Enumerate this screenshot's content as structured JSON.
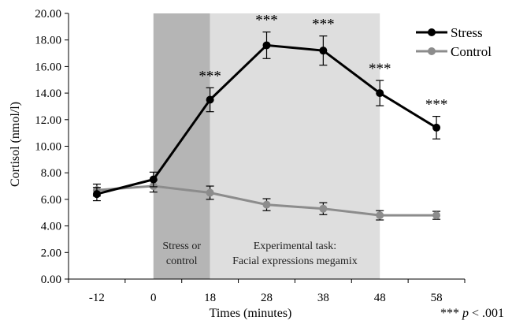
{
  "chart_data": {
    "type": "line",
    "xlabel": "Times (minutes)",
    "ylabel": "Cortisol (nmol/l)",
    "ylim": [
      0,
      20
    ],
    "yticks": [
      "0.00",
      "2.00",
      "4.00",
      "6.00",
      "8.00",
      "10.00",
      "12.00",
      "14.00",
      "16.00",
      "18.00",
      "20.00"
    ],
    "categories": [
      "-12",
      "0",
      "18",
      "28",
      "38",
      "48",
      "58"
    ],
    "series": [
      {
        "name": "Stress",
        "color": "#000000",
        "values": [
          6.4,
          7.5,
          13.5,
          17.6,
          17.2,
          14.0,
          11.4
        ],
        "errors": [
          0.5,
          0.55,
          0.9,
          1.0,
          1.1,
          0.95,
          0.85
        ],
        "significance": [
          "",
          "",
          "***",
          "***",
          "***",
          "***",
          "***"
        ]
      },
      {
        "name": "Control",
        "color": "#8c8c8c",
        "values": [
          6.7,
          7.0,
          6.5,
          5.6,
          5.3,
          4.8,
          4.8
        ],
        "errors": [
          0.45,
          0.45,
          0.5,
          0.45,
          0.45,
          0.35,
          0.3
        ]
      }
    ],
    "bands": [
      {
        "from": "0",
        "to": "18",
        "color": "#b5b5b5",
        "lines": [
          "Stress or",
          "control"
        ]
      },
      {
        "from": "18",
        "to": "48",
        "color": "#dedede",
        "lines": [
          "Experimental task:",
          "Facial expressions megamix"
        ]
      }
    ],
    "legend_position": "top-right",
    "note": {
      "stars": "***",
      "p": "p",
      "rest": " < .001"
    },
    "grid": false
  }
}
